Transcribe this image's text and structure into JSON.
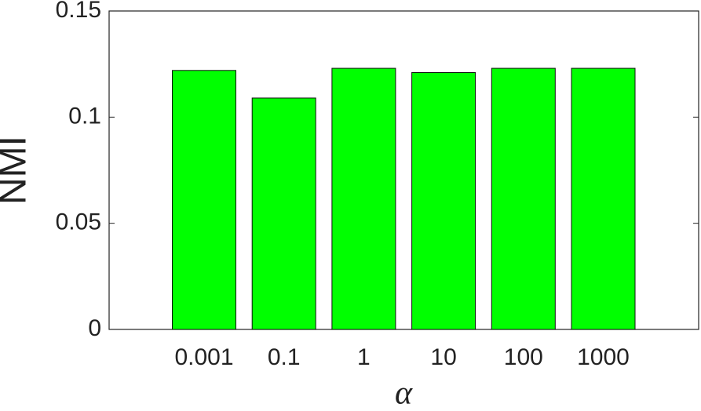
{
  "chart_data": {
    "type": "bar",
    "y_label": "NMI",
    "x_label": "α",
    "categories": [
      "0.001",
      "0.1",
      "1",
      "10",
      "100",
      "1000"
    ],
    "values": [
      0.122,
      0.109,
      0.123,
      0.121,
      0.123,
      0.123
    ],
    "color": "#00ff00",
    "ylim": [
      0,
      0.15
    ],
    "yticks": [
      0,
      0.05,
      0.1,
      0.15
    ],
    "grid": false
  }
}
